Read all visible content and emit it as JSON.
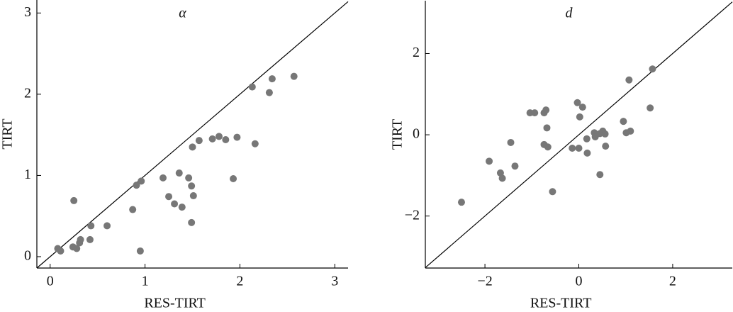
{
  "chart_data": [
    {
      "type": "scatter",
      "title": "α",
      "x_label": "RES-TIRT",
      "y_label": "TIRT",
      "color": "#777777",
      "x": [
        0.08,
        0.11,
        0.25,
        0.24,
        0.28,
        0.31,
        0.32,
        0.42,
        0.43,
        0.6,
        0.87,
        0.91,
        0.96,
        0.95,
        1.19,
        1.25,
        1.31,
        1.36,
        1.39,
        1.46,
        1.49,
        1.49,
        1.51,
        1.5,
        1.57,
        1.71,
        1.78,
        1.85,
        1.93,
        1.97,
        2.16,
        2.13,
        2.31,
        2.34,
        2.57
      ],
      "values": [
        0.1,
        0.07,
        0.69,
        0.12,
        0.1,
        0.17,
        0.21,
        0.21,
        0.38,
        0.38,
        0.58,
        0.88,
        0.93,
        0.07,
        0.97,
        0.74,
        0.65,
        1.03,
        0.61,
        0.97,
        0.87,
        0.42,
        0.75,
        1.35,
        1.43,
        1.45,
        1.48,
        1.44,
        0.96,
        1.47,
        1.39,
        2.09,
        2.02,
        2.19,
        2.22
      ],
      "xlim": [
        -0.14,
        3.14
      ],
      "ylim": [
        -0.14,
        3.16
      ],
      "xticks": [
        0,
        1,
        2,
        3
      ],
      "yticks": [
        0,
        1,
        2,
        3
      ]
    },
    {
      "type": "scatter",
      "title": "d",
      "x_label": "RES-TIRT",
      "y_label": "TIRT",
      "color": "#777777",
      "x": [
        -2.5,
        -1.91,
        -1.67,
        -1.63,
        -1.45,
        -1.36,
        -1.04,
        -0.94,
        -0.74,
        -0.74,
        -0.66,
        -0.68,
        -0.56,
        -0.7,
        -0.14,
        -0.03,
        0.0,
        0.02,
        0.08,
        0.17,
        0.18,
        0.33,
        0.35,
        0.45,
        0.45,
        0.51,
        0.56,
        0.57,
        0.95,
        1.01,
        1.07,
        1.1,
        1.52,
        1.57
      ],
      "values": [
        -1.66,
        -0.65,
        -0.94,
        -1.07,
        -0.19,
        -0.77,
        0.54,
        0.54,
        0.54,
        -0.24,
        -0.3,
        0.17,
        -1.4,
        0.61,
        -0.33,
        0.79,
        -0.33,
        0.44,
        0.68,
        -0.1,
        -0.45,
        0.05,
        -0.05,
        0.03,
        -0.98,
        0.09,
        0.02,
        -0.28,
        0.33,
        0.05,
        1.35,
        0.09,
        0.66,
        1.62
      ],
      "xlim": [
        -3.27,
        3.27
      ],
      "ylim": [
        -3.28,
        3.3
      ],
      "xticks": [
        {
          "value": -2,
          "label": "−2"
        },
        0,
        2
      ],
      "yticks": [
        {
          "value": -2,
          "label": "−2"
        },
        0,
        2
      ]
    }
  ]
}
